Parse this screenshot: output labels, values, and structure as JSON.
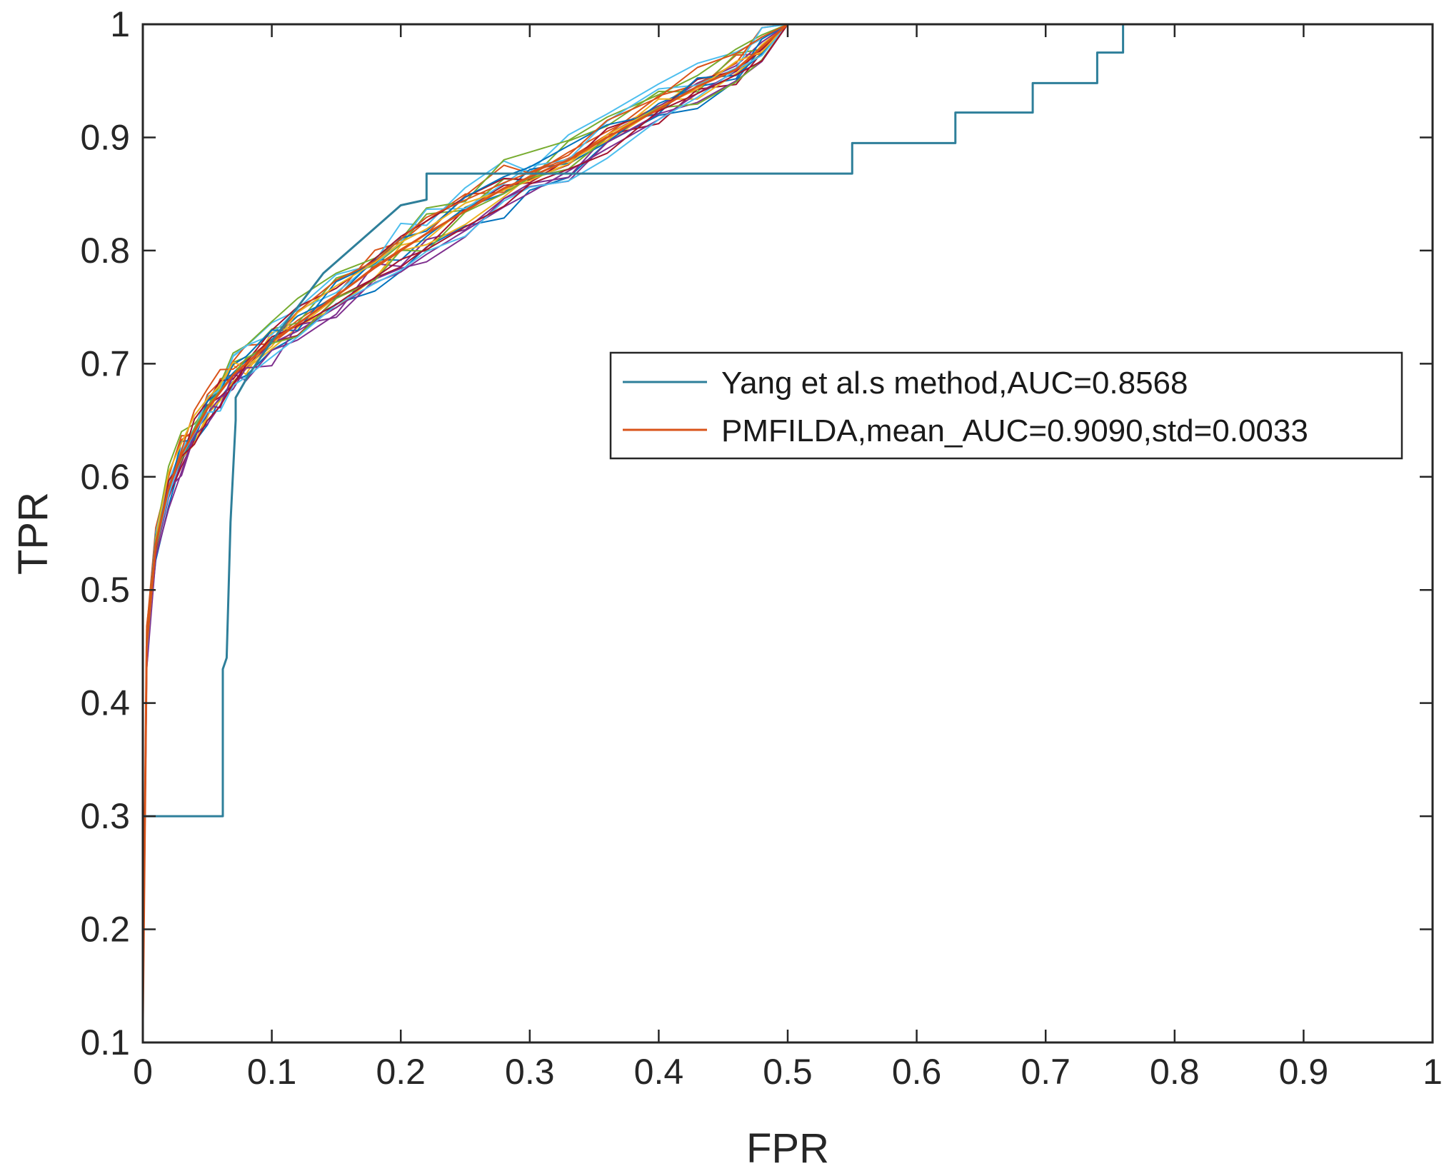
{
  "chart_data": {
    "type": "line",
    "xlabel": "FPR",
    "ylabel": "TPR",
    "xlim": [
      0,
      1
    ],
    "ylim": [
      0.1,
      1
    ],
    "x_ticks": [
      "0",
      "0.1",
      "0.2",
      "0.3",
      "0.4",
      "0.5",
      "0.6",
      "0.7",
      "0.8",
      "0.9",
      "1"
    ],
    "y_ticks": [
      "0.1",
      "0.2",
      "0.3",
      "0.4",
      "0.5",
      "0.6",
      "0.7",
      "0.8",
      "0.9",
      "1"
    ],
    "grid": false,
    "legend_position": "center-right",
    "series": [
      {
        "name": "Yang et al.s method,AUC=0.8568",
        "color": "#2e7f9a",
        "x": [
          0,
          0,
          0.062,
          0.062,
          0.065,
          0.068,
          0.072,
          0.072,
          0.082,
          0.1,
          0.12,
          0.14,
          0.16,
          0.18,
          0.2,
          0.22,
          0.22,
          0.3,
          0.3,
          0.55,
          0.55,
          0.63,
          0.63,
          0.69,
          0.69,
          0.74,
          0.74,
          0.76,
          0.76,
          1.0
        ],
        "y": [
          0.1,
          0.3,
          0.3,
          0.43,
          0.44,
          0.56,
          0.65,
          0.67,
          0.69,
          0.72,
          0.75,
          0.78,
          0.8,
          0.82,
          0.84,
          0.845,
          0.868,
          0.868,
          0.868,
          0.868,
          0.895,
          0.895,
          0.922,
          0.922,
          0.948,
          0.948,
          0.975,
          0.975,
          1.0,
          1.0
        ]
      },
      {
        "name": "PMFILDA,mean_AUC=0.9090,std=0.0033",
        "color": "#d95319",
        "x": [
          0,
          0.003,
          0.01,
          0.02,
          0.03,
          0.04,
          0.05,
          0.06,
          0.07,
          0.08,
          0.1,
          0.12,
          0.15,
          0.18,
          0.2,
          0.22,
          0.25,
          0.28,
          0.3,
          0.33,
          0.36,
          0.4,
          0.43,
          0.46,
          0.48,
          0.5,
          1.0
        ],
        "y": [
          0.12,
          0.45,
          0.54,
          0.59,
          0.62,
          0.64,
          0.66,
          0.675,
          0.69,
          0.7,
          0.72,
          0.735,
          0.76,
          0.785,
          0.8,
          0.815,
          0.835,
          0.855,
          0.865,
          0.88,
          0.9,
          0.925,
          0.945,
          0.96,
          0.98,
          1.0,
          1.0
        ]
      }
    ]
  }
}
